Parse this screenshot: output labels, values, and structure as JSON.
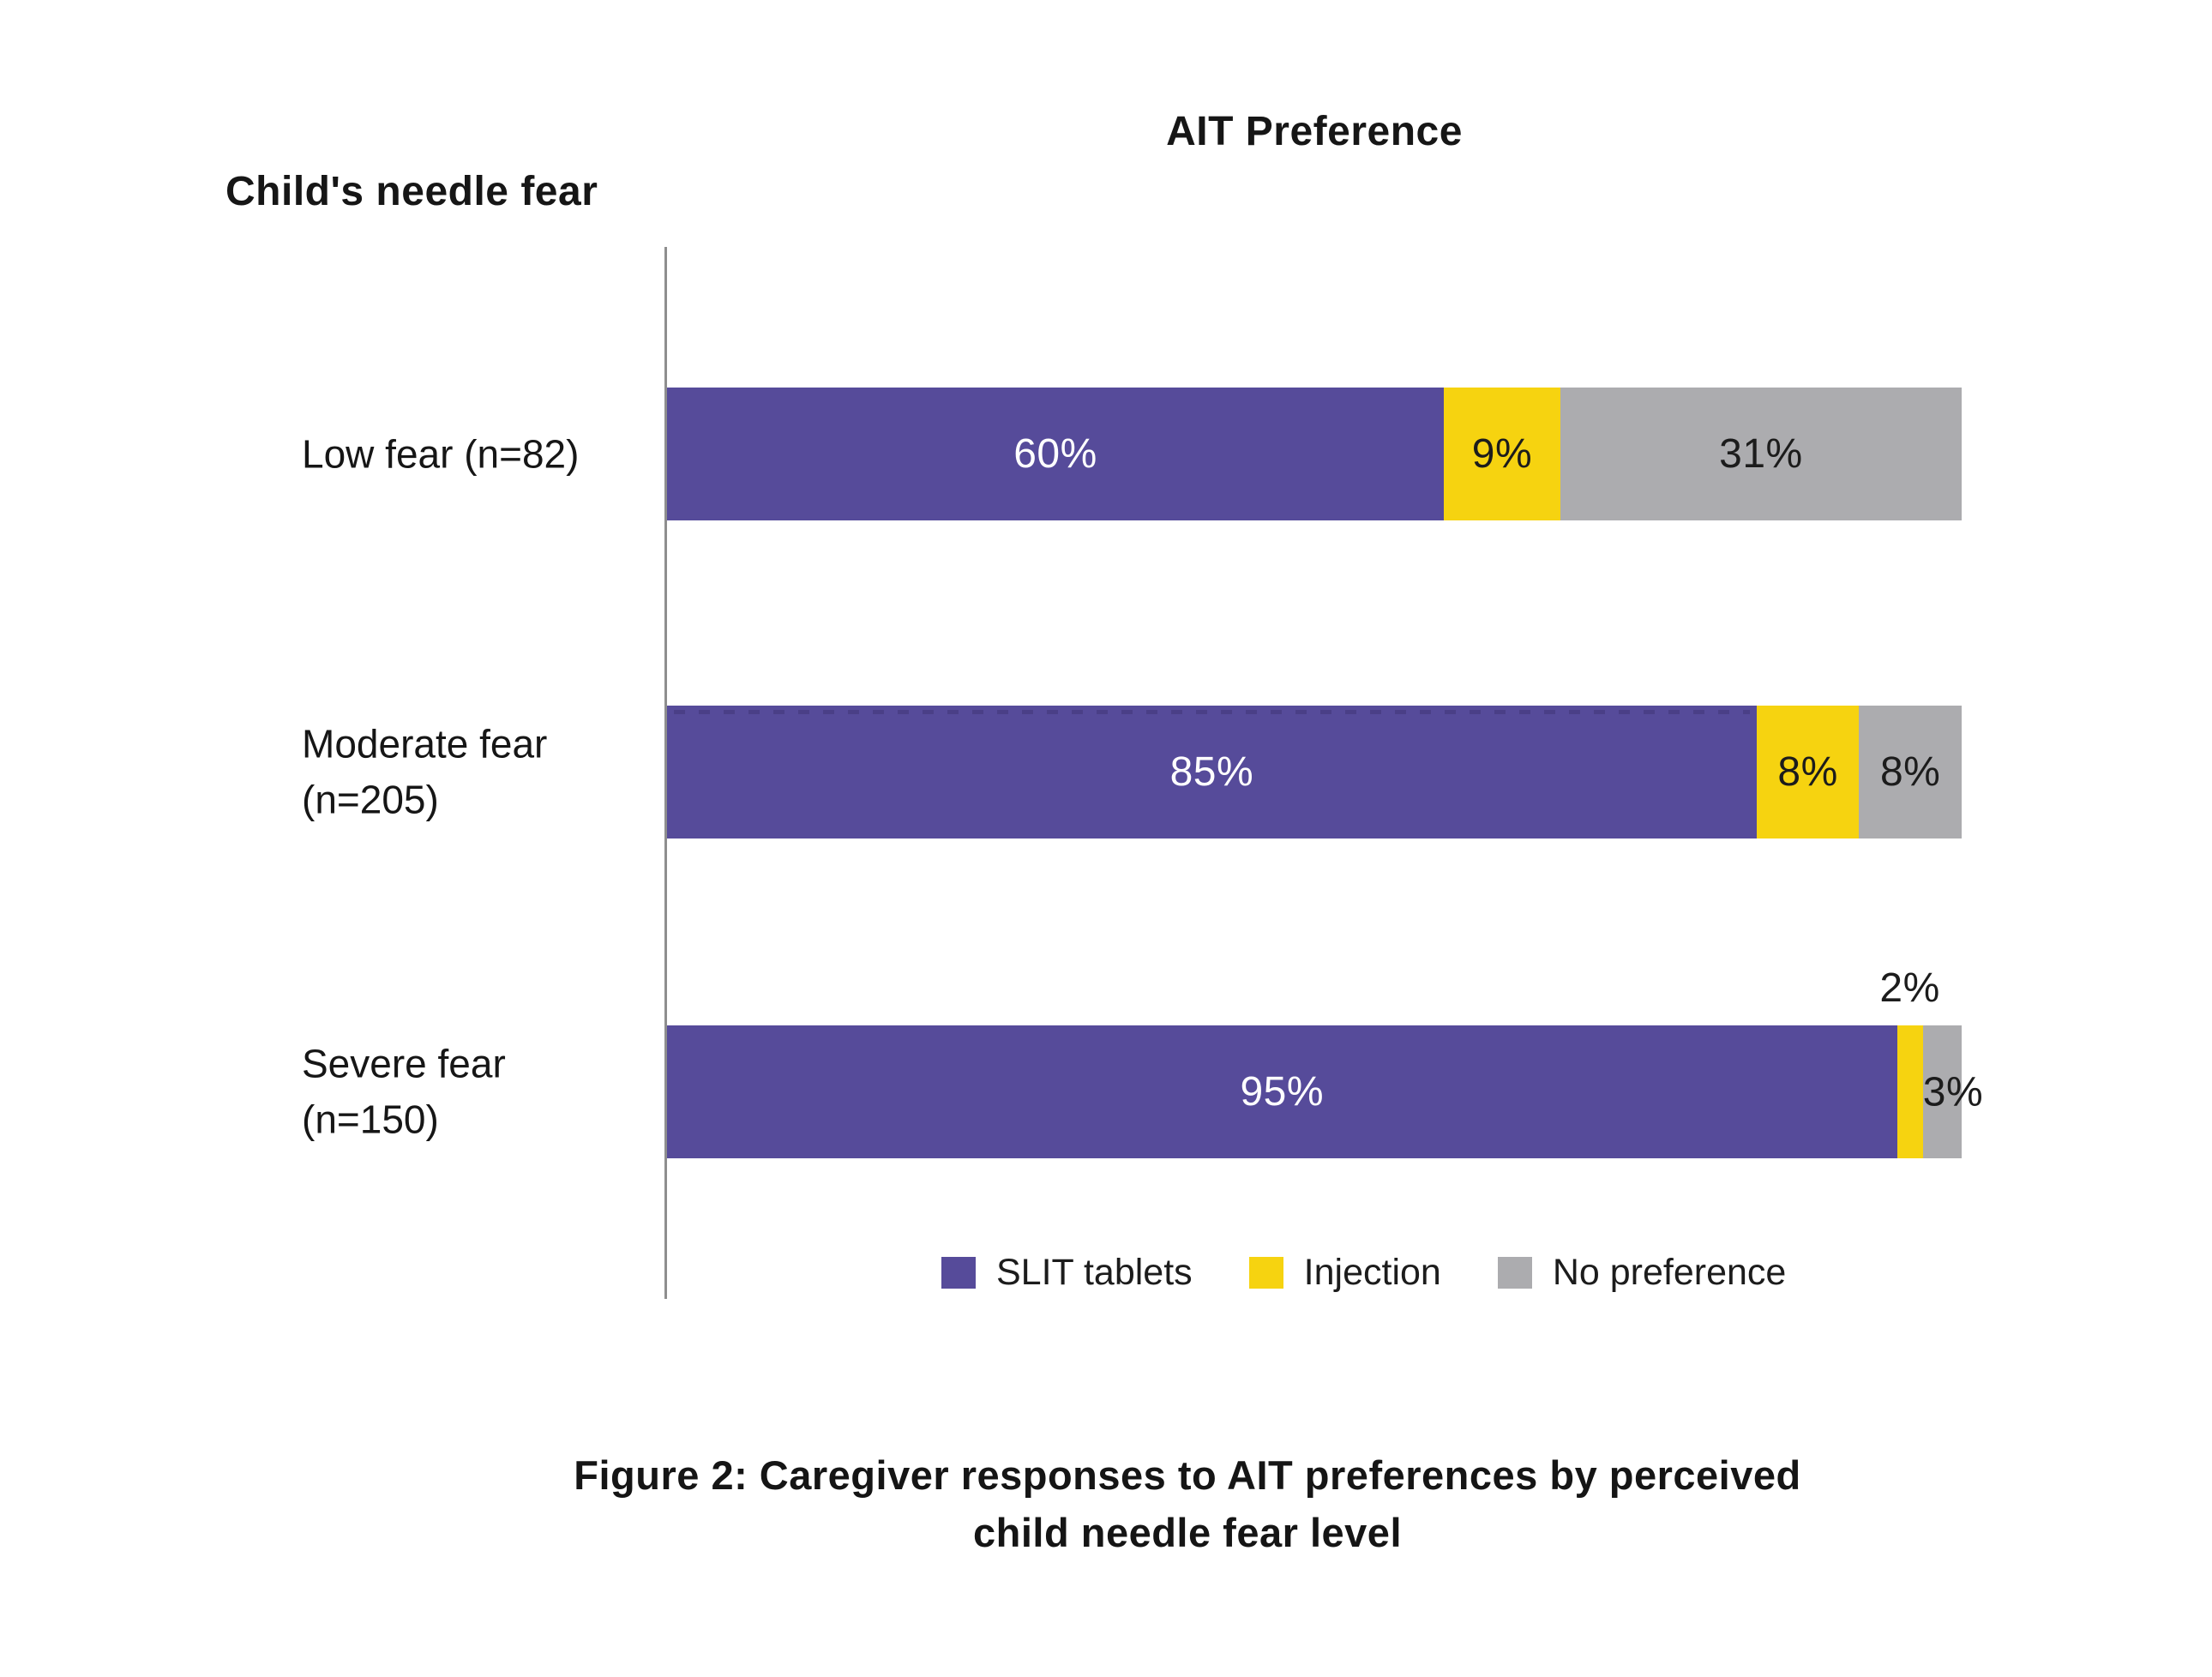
{
  "chart": {
    "title": "AIT Preference",
    "y_axis_title": "Child's needle fear",
    "axis_color": "#8E8E8E",
    "legend": [
      {
        "label": "SLIT tablets",
        "color": "#564B9A"
      },
      {
        "label": "Injection",
        "color": "#F6D310"
      },
      {
        "label": "No preference",
        "color": "#ACACAF"
      }
    ],
    "caption": {
      "line1": "Figure 2: Caregiver responses to AIT preferences by perceived",
      "line2": "child needle fear level"
    }
  },
  "chart_data": {
    "type": "bar",
    "orientation": "horizontal",
    "stacked": true,
    "unit": "percent",
    "title": "AIT Preference",
    "xlabel": "AIT Preference",
    "ylabel": "Child's needle fear",
    "xlim": [
      0,
      100
    ],
    "grid": false,
    "legend_position": "bottom",
    "categories": [
      "Low fear (n=82)",
      "Moderate fear\n(n=205)",
      "Severe fear\n(n=150)"
    ],
    "series": [
      {
        "name": "SLIT tablets",
        "color": "#564B9A",
        "label_color": "#FFFFFF",
        "values": [
          60,
          85,
          95
        ]
      },
      {
        "name": "Injection",
        "color": "#F6D310",
        "label_color": "#1C1C1C",
        "values": [
          9,
          8,
          2
        ]
      },
      {
        "name": "No preference",
        "color": "#ACACAF",
        "label_color": "#1C1C1C",
        "values": [
          31,
          8,
          3
        ]
      }
    ],
    "value_labels": [
      [
        "60%",
        "9%",
        "31%"
      ],
      [
        "85%",
        "8%",
        "8%"
      ],
      [
        "95%",
        "2%",
        "3%"
      ]
    ],
    "label_placement": [
      [
        "inside",
        "inside",
        "inside"
      ],
      [
        "inside",
        "inside",
        "inside"
      ],
      [
        "inside",
        "above",
        "edge-right"
      ]
    ]
  }
}
